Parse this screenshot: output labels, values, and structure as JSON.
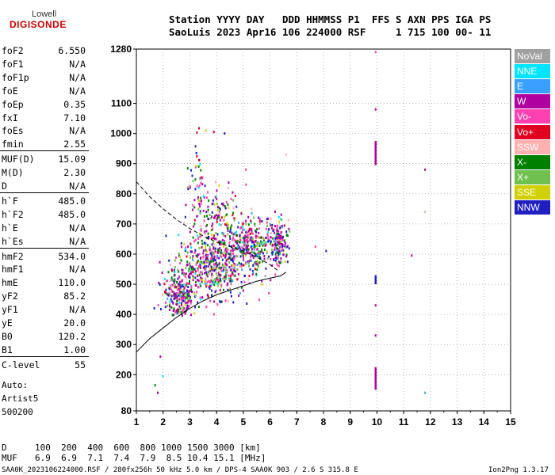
{
  "logo": {
    "line1": "Lowell",
    "line2": "DIGISONDE"
  },
  "header": {
    "line1": "Station YYYY DAY   DDD HHMMSS P1  FFS S AXN PPS IGA PS",
    "line2": "SaoLuis 2023 Apr16 106 224000 RSF     1 715 100 00- 11"
  },
  "params": [
    {
      "name": "foF2",
      "value": "6.550"
    },
    {
      "name": "foF1",
      "value": "N/A"
    },
    {
      "name": "foF1p",
      "value": "N/A"
    },
    {
      "name": "foE",
      "value": "N/A"
    },
    {
      "name": "foEp",
      "value": "0.35"
    },
    {
      "name": "fxI",
      "value": "7.10"
    },
    {
      "name": "foEs",
      "value": "N/A"
    },
    {
      "name": "fmin",
      "value": "2.55"
    },
    {
      "name": "MUF(D)",
      "value": "15.09"
    },
    {
      "name": "M(D)",
      "value": "2.30"
    },
    {
      "name": "D",
      "value": "N/A"
    },
    {
      "name": "h`F",
      "value": "485.0"
    },
    {
      "name": "h`F2",
      "value": "485.0"
    },
    {
      "name": "h`E",
      "value": "N/A"
    },
    {
      "name": "h`Es",
      "value": "N/A"
    },
    {
      "name": "hmF2",
      "value": "534.0"
    },
    {
      "name": "hmF1",
      "value": "N/A"
    },
    {
      "name": "hmE",
      "value": "110.0"
    },
    {
      "name": "yF2",
      "value": "85.2"
    },
    {
      "name": "yF1",
      "value": "N/A"
    },
    {
      "name": "yE",
      "value": "20.0"
    },
    {
      "name": "B0",
      "value": "120.2"
    },
    {
      "name": "B1",
      "value": "1.00"
    },
    {
      "name": "C-level",
      "value": "55"
    }
  ],
  "auto": {
    "line1": "Auto:",
    "line2": "Artist5",
    "line3": "500200"
  },
  "legend": [
    {
      "label": "NoVal",
      "color": "#a0a0a0"
    },
    {
      "label": "NNE",
      "color": "#00e5ff"
    },
    {
      "label": "E",
      "color": "#3aa0ff"
    },
    {
      "label": "W",
      "color": "#b000a0"
    },
    {
      "label": "Vo-",
      "color": "#ff40b0"
    },
    {
      "label": "Vo+",
      "color": "#e00020"
    },
    {
      "label": "SSW",
      "color": "#ffb0b0"
    },
    {
      "label": "X-",
      "color": "#008000"
    },
    {
      "label": "X+",
      "color": "#70c050"
    },
    {
      "label": "SSE",
      "color": "#d0d000"
    },
    {
      "label": "NNW",
      "color": "#2020c0"
    }
  ],
  "muf_table": {
    "d_label": "D",
    "distances": "100  200  400  600  800 1000 1500 3000 [km]",
    "muf_label": "MUF",
    "mufs": "6.9  6.9  7.1  7.4  7.9  8.5 10.4 15.1 [MHz]"
  },
  "footer": {
    "left": "SAA0K_2023106224000.RSF / 280fx256h 50 kHz 5.0 km / DPS-4 SAA0K 903 / 2.6 S 315.8 E",
    "right": "Ion2Png 1.3.17"
  },
  "chart_data": {
    "type": "scatter",
    "xlabel": "",
    "ylabel": "",
    "xlim": [
      1,
      15
    ],
    "ylim": [
      80,
      1280
    ],
    "x_ticks": [
      "1",
      "2",
      "3",
      "4",
      "5",
      "6",
      "7",
      "8",
      "9",
      "10",
      "11",
      "12",
      "13",
      "14",
      "15"
    ],
    "y_ticks": [
      {
        "value": 80,
        "label": "80"
      },
      {
        "value": 200,
        "label": "200"
      },
      {
        "value": 300,
        "label": "300"
      },
      {
        "value": 400,
        "label": "400"
      },
      {
        "value": 500,
        "label": "500"
      },
      {
        "value": 600,
        "label": "600"
      },
      {
        "value": 700,
        "label": "700"
      },
      {
        "value": 800,
        "label": "800"
      },
      {
        "value": 900,
        "label": "900"
      },
      {
        "value": 1000,
        "label": "1000"
      },
      {
        "value": 1100,
        "label": "1100"
      },
      {
        "value": 1280,
        "label": "1280"
      }
    ],
    "profile_dashed": [
      [
        1.0,
        840
      ],
      [
        1.5,
        790
      ],
      [
        2.0,
        750
      ],
      [
        2.5,
        715
      ],
      [
        3.0,
        685
      ],
      [
        3.5,
        660
      ],
      [
        4.0,
        640
      ],
      [
        4.5,
        625
      ],
      [
        5.0,
        610
      ],
      [
        5.5,
        590
      ],
      [
        6.0,
        565
      ],
      [
        6.3,
        545
      ]
    ],
    "trace_solid": [
      [
        1.0,
        275
      ],
      [
        1.5,
        320
      ],
      [
        2.0,
        355
      ],
      [
        2.5,
        390
      ],
      [
        3.0,
        420
      ],
      [
        3.5,
        445
      ],
      [
        4.0,
        465
      ],
      [
        4.5,
        480
      ],
      [
        5.0,
        495
      ],
      [
        5.5,
        510
      ],
      [
        6.0,
        520
      ],
      [
        6.4,
        528
      ],
      [
        6.6,
        540
      ]
    ],
    "echo_clusters": [
      {
        "cx": 3.8,
        "cy": 560,
        "sx": 1.2,
        "sy": 70,
        "n": 550
      },
      {
        "cx": 2.6,
        "cy": 460,
        "sx": 0.5,
        "sy": 45,
        "n": 240
      },
      {
        "cx": 5.2,
        "cy": 630,
        "sx": 0.8,
        "sy": 60,
        "n": 320
      },
      {
        "cx": 6.3,
        "cy": 640,
        "sx": 0.35,
        "sy": 45,
        "n": 150
      },
      {
        "cx": 4.0,
        "cy": 740,
        "sx": 0.8,
        "sy": 55,
        "n": 120
      },
      {
        "cx": 3.3,
        "cy": 850,
        "sx": 0.3,
        "sy": 80,
        "n": 40
      }
    ],
    "vertical_streaks": [
      {
        "x": 9.95,
        "y0": 895,
        "y1": 975,
        "color": "#b000a0"
      },
      {
        "x": 9.95,
        "y0": 150,
        "y1": 225,
        "color": "#b000a0"
      },
      {
        "x": 9.95,
        "y0": 500,
        "y1": 530,
        "color": "#2020c0"
      }
    ]
  }
}
